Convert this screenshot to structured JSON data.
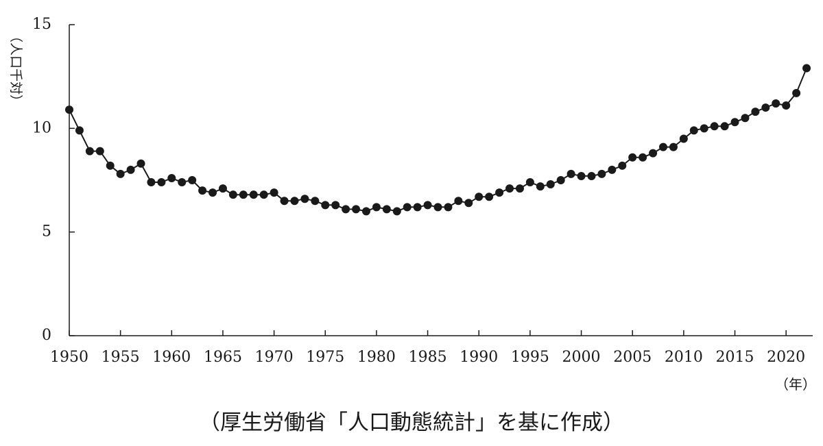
{
  "chart_data": {
    "type": "line",
    "ylabel": "（人口千対）",
    "xlabel": "（年）",
    "ylim": [
      0,
      15
    ],
    "xlim": [
      1950,
      2022
    ],
    "y_ticks": [
      "0",
      "5",
      "10",
      "15"
    ],
    "x_ticks": [
      "1950",
      "1955",
      "1960",
      "1965",
      "1970",
      "1975",
      "1980",
      "1985",
      "1990",
      "1995",
      "2000",
      "2005",
      "2010",
      "2015",
      "2020"
    ],
    "grid": false,
    "series": [
      {
        "x": [
          1950,
          1951,
          1952,
          1953,
          1954,
          1955,
          1956,
          1957,
          1958,
          1959,
          1960,
          1961,
          1962,
          1963,
          1964,
          1965,
          1966,
          1967,
          1968,
          1969,
          1970,
          1971,
          1972,
          1973,
          1974,
          1975,
          1976,
          1977,
          1978,
          1979,
          1980,
          1981,
          1982,
          1983,
          1984,
          1985,
          1986,
          1987,
          1988,
          1989,
          1990,
          1991,
          1992,
          1993,
          1994,
          1995,
          1996,
          1997,
          1998,
          1999,
          2000,
          2001,
          2002,
          2003,
          2004,
          2005,
          2006,
          2007,
          2008,
          2009,
          2010,
          2011,
          2012,
          2013,
          2014,
          2015,
          2016,
          2017,
          2018,
          2019,
          2020,
          2021,
          2022
        ],
        "y": [
          10.9,
          9.9,
          8.9,
          8.9,
          8.2,
          7.8,
          8.0,
          8.3,
          7.4,
          7.4,
          7.6,
          7.4,
          7.5,
          7.0,
          6.9,
          7.1,
          6.8,
          6.8,
          6.8,
          6.8,
          6.9,
          6.5,
          6.5,
          6.6,
          6.5,
          6.3,
          6.3,
          6.1,
          6.1,
          6.0,
          6.2,
          6.1,
          6.0,
          6.2,
          6.2,
          6.3,
          6.2,
          6.2,
          6.5,
          6.4,
          6.7,
          6.7,
          6.9,
          7.1,
          7.1,
          7.4,
          7.2,
          7.3,
          7.5,
          7.8,
          7.7,
          7.7,
          7.8,
          8.0,
          8.2,
          8.6,
          8.6,
          8.8,
          9.1,
          9.1,
          9.5,
          9.9,
          10.0,
          10.1,
          10.1,
          10.3,
          10.5,
          10.8,
          11.0,
          11.2,
          11.1,
          11.7,
          12.9
        ]
      }
    ]
  },
  "caption": "（厚生労働省「人口動態統計」を基に作成）"
}
